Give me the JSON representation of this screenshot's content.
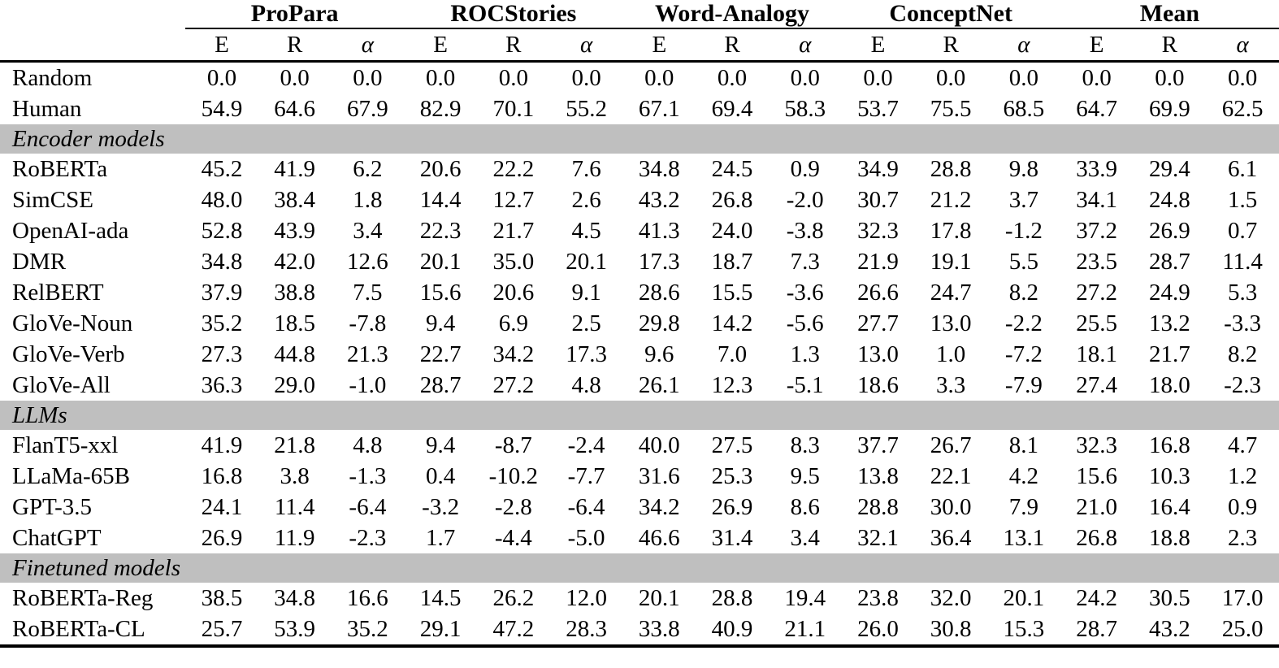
{
  "colors": {
    "section_band": "#bfbfbf",
    "rule": "#000000",
    "background": "#ffffff",
    "text": "#000000"
  },
  "table": {
    "row_label_column_header": "",
    "column_groups": [
      {
        "label": "ProPara",
        "subcolumns": [
          "E",
          "R",
          "α"
        ]
      },
      {
        "label": "ROCStories",
        "subcolumns": [
          "E",
          "R",
          "α"
        ]
      },
      {
        "label": "Word-Analogy",
        "subcolumns": [
          "E",
          "R",
          "α"
        ]
      },
      {
        "label": "ConceptNet",
        "subcolumns": [
          "E",
          "R",
          "α"
        ]
      },
      {
        "label": "Mean",
        "subcolumns": [
          "E",
          "R",
          "α"
        ]
      }
    ],
    "sections": [
      {
        "header": null,
        "rows": [
          {
            "label": "Random",
            "values": [
              "0.0",
              "0.0",
              "0.0",
              "0.0",
              "0.0",
              "0.0",
              "0.0",
              "0.0",
              "0.0",
              "0.0",
              "0.0",
              "0.0",
              "0.0",
              "0.0",
              "0.0"
            ]
          },
          {
            "label": "Human",
            "values": [
              "54.9",
              "64.6",
              "67.9",
              "82.9",
              "70.1",
              "55.2",
              "67.1",
              "69.4",
              "58.3",
              "53.7",
              "75.5",
              "68.5",
              "64.7",
              "69.9",
              "62.5"
            ]
          }
        ]
      },
      {
        "header": "Encoder models",
        "rows": [
          {
            "label": "RoBERTa",
            "values": [
              "45.2",
              "41.9",
              "6.2",
              "20.6",
              "22.2",
              "7.6",
              "34.8",
              "24.5",
              "0.9",
              "34.9",
              "28.8",
              "9.8",
              "33.9",
              "29.4",
              "6.1"
            ]
          },
          {
            "label": "SimCSE",
            "values": [
              "48.0",
              "38.4",
              "1.8",
              "14.4",
              "12.7",
              "2.6",
              "43.2",
              "26.8",
              "-2.0",
              "30.7",
              "21.2",
              "3.7",
              "34.1",
              "24.8",
              "1.5"
            ]
          },
          {
            "label": "OpenAI-ada",
            "values": [
              "52.8",
              "43.9",
              "3.4",
              "22.3",
              "21.7",
              "4.5",
              "41.3",
              "24.0",
              "-3.8",
              "32.3",
              "17.8",
              "-1.2",
              "37.2",
              "26.9",
              "0.7"
            ]
          },
          {
            "label": "DMR",
            "values": [
              "34.8",
              "42.0",
              "12.6",
              "20.1",
              "35.0",
              "20.1",
              "17.3",
              "18.7",
              "7.3",
              "21.9",
              "19.1",
              "5.5",
              "23.5",
              "28.7",
              "11.4"
            ]
          },
          {
            "label": "RelBERT",
            "values": [
              "37.9",
              "38.8",
              "7.5",
              "15.6",
              "20.6",
              "9.1",
              "28.6",
              "15.5",
              "-3.6",
              "26.6",
              "24.7",
              "8.2",
              "27.2",
              "24.9",
              "5.3"
            ]
          },
          {
            "label": "GloVe-Noun",
            "values": [
              "35.2",
              "18.5",
              "-7.8",
              "9.4",
              "6.9",
              "2.5",
              "29.8",
              "14.2",
              "-5.6",
              "27.7",
              "13.0",
              "-2.2",
              "25.5",
              "13.2",
              "-3.3"
            ]
          },
          {
            "label": "GloVe-Verb",
            "values": [
              "27.3",
              "44.8",
              "21.3",
              "22.7",
              "34.2",
              "17.3",
              "9.6",
              "7.0",
              "1.3",
              "13.0",
              "1.0",
              "-7.2",
              "18.1",
              "21.7",
              "8.2"
            ]
          },
          {
            "label": "GloVe-All",
            "values": [
              "36.3",
              "29.0",
              "-1.0",
              "28.7",
              "27.2",
              "4.8",
              "26.1",
              "12.3",
              "-5.1",
              "18.6",
              "3.3",
              "-7.9",
              "27.4",
              "18.0",
              "-2.3"
            ]
          }
        ]
      },
      {
        "header": "LLMs",
        "rows": [
          {
            "label": "FlanT5-xxl",
            "values": [
              "41.9",
              "21.8",
              "4.8",
              "9.4",
              "-8.7",
              "-2.4",
              "40.0",
              "27.5",
              "8.3",
              "37.7",
              "26.7",
              "8.1",
              "32.3",
              "16.8",
              "4.7"
            ]
          },
          {
            "label": "LLaMa-65B",
            "values": [
              "16.8",
              "3.8",
              "-1.3",
              "0.4",
              "-10.2",
              "-7.7",
              "31.6",
              "25.3",
              "9.5",
              "13.8",
              "22.1",
              "4.2",
              "15.6",
              "10.3",
              "1.2"
            ]
          },
          {
            "label": "GPT-3.5",
            "values": [
              "24.1",
              "11.4",
              "-6.4",
              "-3.2",
              "-2.8",
              "-6.4",
              "34.2",
              "26.9",
              "8.6",
              "28.8",
              "30.0",
              "7.9",
              "21.0",
              "16.4",
              "0.9"
            ]
          },
          {
            "label": "ChatGPT",
            "values": [
              "26.9",
              "11.9",
              "-2.3",
              "1.7",
              "-4.4",
              "-5.0",
              "46.6",
              "31.4",
              "3.4",
              "32.1",
              "36.4",
              "13.1",
              "26.8",
              "18.8",
              "2.3"
            ]
          }
        ]
      },
      {
        "header": "Finetuned models",
        "rows": [
          {
            "label": "RoBERTa-Reg",
            "values": [
              "38.5",
              "34.8",
              "16.6",
              "14.5",
              "26.2",
              "12.0",
              "20.1",
              "28.8",
              "19.4",
              "23.8",
              "32.0",
              "20.1",
              "24.2",
              "30.5",
              "17.0"
            ]
          },
          {
            "label": "RoBERTa-CL",
            "values": [
              "25.7",
              "53.9",
              "35.2",
              "29.1",
              "47.2",
              "28.3",
              "33.8",
              "40.9",
              "21.1",
              "26.0",
              "30.8",
              "15.3",
              "28.7",
              "43.2",
              "25.0"
            ]
          }
        ]
      }
    ]
  }
}
